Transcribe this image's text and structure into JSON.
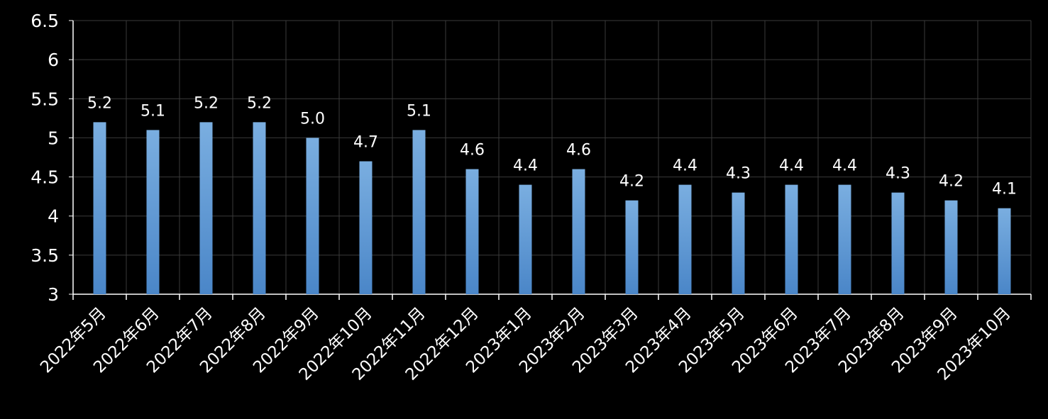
{
  "chart_data": {
    "type": "bar",
    "title": "",
    "xlabel": "",
    "ylabel": "",
    "categories": [
      "2022年5月",
      "2022年6月",
      "2022年7月",
      "2022年8月",
      "2022年9月",
      "2022年10月",
      "2022年11月",
      "2022年12月",
      "2023年1月",
      "2023年2月",
      "2023年3月",
      "2023年4月",
      "2023年5月",
      "2023年6月",
      "2023年7月",
      "2023年8月",
      "2023年9月",
      "2023年10月"
    ],
    "values": [
      5.2,
      5.1,
      5.2,
      5.2,
      5.0,
      4.7,
      5.1,
      4.6,
      4.4,
      4.6,
      4.2,
      4.4,
      4.3,
      4.4,
      4.4,
      4.3,
      4.2,
      4.1
    ],
    "data_labels": [
      "5.2",
      "5.1",
      "5.2",
      "5.2",
      "5.0",
      "4.7",
      "5.1",
      "4.6",
      "4.4",
      "4.6",
      "4.2",
      "4.4",
      "4.3",
      "4.4",
      "4.4",
      "4.3",
      "4.2",
      "4.1"
    ],
    "ylim": [
      3,
      6.5
    ],
    "y_ticks": [
      3,
      3.5,
      4,
      4.5,
      5,
      5.5,
      6,
      6.5
    ],
    "y_tick_labels": [
      "3",
      "3.5",
      "4",
      "4.5",
      "5",
      "5.5",
      "6",
      "6.5"
    ],
    "grid": true,
    "legend": "none",
    "colors": {
      "background": "#000000",
      "bar_top": "#7aaee0",
      "bar_bottom": "#4a86c8",
      "grid": "#3a3a3a",
      "axis": "#ffffff",
      "text": "#ffffff"
    }
  }
}
